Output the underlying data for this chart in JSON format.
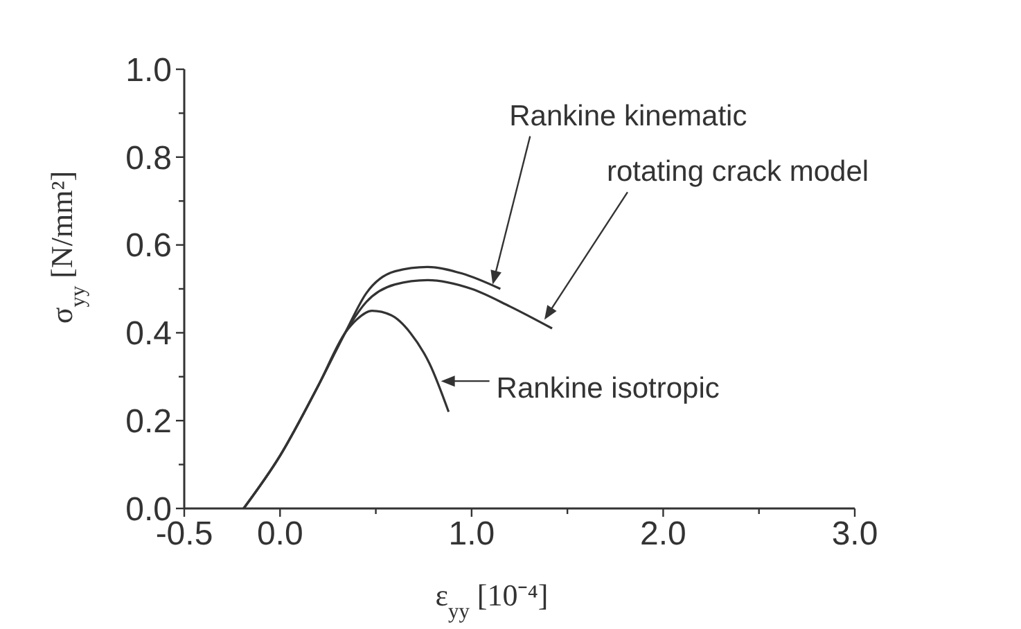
{
  "chart_data": {
    "type": "line",
    "xlabel": "ε$_{yy}$ [10⁻⁴]",
    "ylabel": "σ$_{yy}$ [N/mm²]",
    "xlim": [
      -0.5,
      3.0
    ],
    "ylim": [
      0.0,
      1.0
    ],
    "xticks": [
      {
        "value": -0.5,
        "label": "-0.5"
      },
      {
        "value": 0,
        "label": "0.0"
      },
      {
        "value": 0.5,
        "label": null
      },
      {
        "value": 1,
        "label": "1.0"
      },
      {
        "value": 1.5,
        "label": null
      },
      {
        "value": 2,
        "label": "2.0"
      },
      {
        "value": 2.5,
        "label": null
      },
      {
        "value": 3,
        "label": "3.0"
      }
    ],
    "yticks": [
      {
        "value": 0,
        "label": "0.0"
      },
      {
        "value": 0.1,
        "label": null
      },
      {
        "value": 0.2,
        "label": "0.2"
      },
      {
        "value": 0.3,
        "label": null
      },
      {
        "value": 0.4,
        "label": "0.4"
      },
      {
        "value": 0.5,
        "label": null
      },
      {
        "value": 0.6,
        "label": "0.6"
      },
      {
        "value": 0.7,
        "label": null
      },
      {
        "value": 0.8,
        "label": "0.8"
      },
      {
        "value": 0.9,
        "label": null
      },
      {
        "value": 1,
        "label": "1.0"
      }
    ],
    "grid": false,
    "marker": "none",
    "line_style": "solid",
    "series": [
      {
        "color": "#333333",
        "x": [
          -0.19,
          0,
          0.2,
          0.34,
          0.45,
          0.6,
          0.77,
          0.95,
          1.15
        ],
        "values": [
          0,
          0.12,
          0.28,
          0.4,
          0.49,
          0.54,
          0.55,
          0.535,
          0.5
        ]
      },
      {
        "color": "#333333",
        "x": [
          -0.19,
          0,
          0.2,
          0.34,
          0.45,
          0.6,
          0.77,
          1.0,
          1.2,
          1.42
        ],
        "values": [
          0,
          0.12,
          0.28,
          0.4,
          0.47,
          0.51,
          0.52,
          0.5,
          0.46,
          0.41
        ]
      },
      {
        "color": "#333333",
        "x": [
          -0.19,
          0,
          0.2,
          0.34,
          0.4,
          0.48,
          0.58,
          0.68,
          0.78,
          0.88
        ],
        "values": [
          0,
          0.12,
          0.28,
          0.4,
          0.43,
          0.45,
          0.44,
          0.4,
          0.33,
          0.22
        ]
      }
    ],
    "annotations": [
      {
        "text": "Rankine kinematic",
        "x": 1.11,
        "y": 0.51
      },
      {
        "text": "rotating crack model",
        "x": 1.38,
        "y": 0.43
      },
      {
        "text": "Rankine isotropic",
        "x": 0.84,
        "y": 0.29
      }
    ]
  }
}
